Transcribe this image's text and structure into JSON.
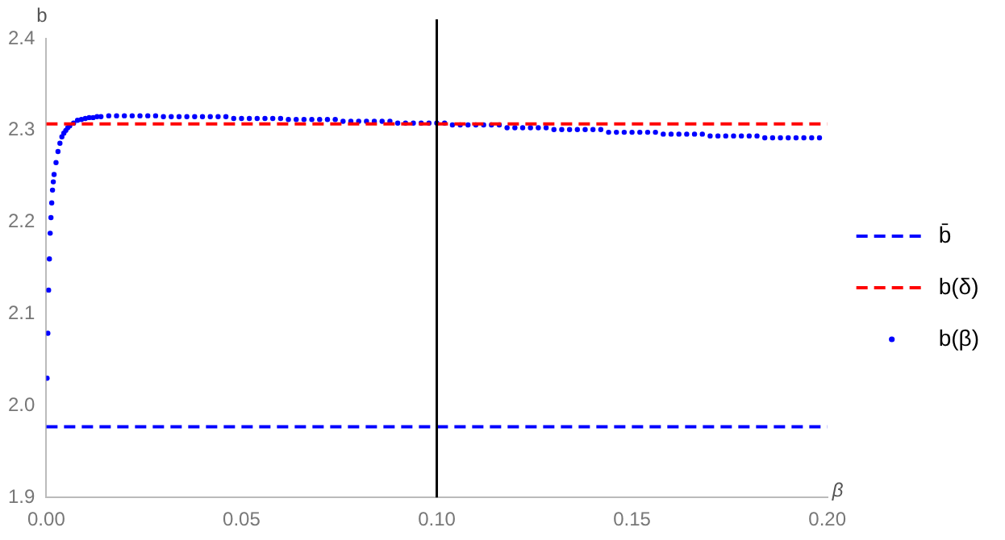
{
  "chart_data": {
    "type": "line",
    "xlabel": "β",
    "ylabel": "b",
    "xlim": [
      0,
      0.2
    ],
    "ylim": [
      1.9,
      2.4
    ],
    "xticks": [
      {
        "value": 0,
        "label": "0.00"
      },
      0.05,
      {
        "value": 0.1,
        "label": "0.10"
      },
      0.15,
      {
        "value": 0.2,
        "label": "0.20"
      }
    ],
    "yticks": [
      1.9,
      {
        "value": 2,
        "label": "2.0"
      },
      2.1,
      2.2,
      2.3,
      2.4
    ],
    "grid": false,
    "legend": "right",
    "ref_lines": [
      {
        "axis": "x",
        "value": 0.1,
        "color": "#000000"
      }
    ],
    "series": [
      {
        "name": "b̄",
        "line_style": "dashed",
        "marker": "none",
        "color": "#0000ff",
        "x": [
          0,
          0.2
        ],
        "values": [
          1.977,
          1.977
        ]
      },
      {
        "name": "b(δ)",
        "line_style": "dashed",
        "marker": "none",
        "color": "#ff0000",
        "x": [
          0,
          0.2
        ],
        "values": [
          2.307,
          2.307
        ]
      },
      {
        "name": "b(β)",
        "type": "scatter",
        "marker": "circle",
        "color": "#0000ff",
        "x": [
          0.0002,
          0.0004,
          0.0006,
          0.0008,
          0.001,
          0.0012,
          0.0014,
          0.0016,
          0.0018,
          0.002,
          0.0025,
          0.003,
          0.0035,
          0.004,
          0.0045,
          0.005,
          0.0055,
          0.006,
          0.007,
          0.008,
          0.009,
          0.01,
          0.011,
          0.012,
          0.013,
          0.014,
          0.016,
          0.018,
          0.02,
          0.022,
          0.024,
          0.026,
          0.028,
          0.03,
          0.032,
          0.034,
          0.036,
          0.038,
          0.04,
          0.042,
          0.044,
          0.046,
          0.048,
          0.05,
          0.052,
          0.054,
          0.056,
          0.058,
          0.06,
          0.062,
          0.064,
          0.066,
          0.068,
          0.07,
          0.072,
          0.074,
          0.076,
          0.078,
          0.08,
          0.082,
          0.084,
          0.086,
          0.088,
          0.09,
          0.092,
          0.094,
          0.096,
          0.098,
          0.1,
          0.102,
          0.104,
          0.106,
          0.108,
          0.11,
          0.112,
          0.114,
          0.116,
          0.118,
          0.12,
          0.122,
          0.124,
          0.126,
          0.128,
          0.13,
          0.132,
          0.134,
          0.136,
          0.138,
          0.14,
          0.142,
          0.144,
          0.146,
          0.148,
          0.15,
          0.152,
          0.154,
          0.156,
          0.158,
          0.16,
          0.162,
          0.164,
          0.166,
          0.168,
          0.17,
          0.172,
          0.174,
          0.176,
          0.178,
          0.18,
          0.182,
          0.184,
          0.186,
          0.188,
          0.19,
          0.192,
          0.194,
          0.196,
          0.198
        ],
        "values": [
          2.03,
          2.079,
          2.126,
          2.16,
          2.188,
          2.205,
          2.221,
          2.235,
          2.244,
          2.252,
          2.265,
          2.277,
          2.286,
          2.293,
          2.297,
          2.3,
          2.303,
          2.305,
          2.308,
          2.311,
          2.312,
          2.313,
          2.314,
          2.314,
          2.315,
          2.315,
          2.316,
          2.316,
          2.316,
          2.316,
          2.316,
          2.316,
          2.316,
          2.315,
          2.315,
          2.315,
          2.315,
          2.315,
          2.315,
          2.315,
          2.315,
          2.315,
          2.313,
          2.313,
          2.313,
          2.313,
          2.313,
          2.313,
          2.313,
          2.312,
          2.312,
          2.312,
          2.312,
          2.312,
          2.312,
          2.312,
          2.31,
          2.31,
          2.31,
          2.31,
          2.31,
          2.31,
          2.31,
          2.308,
          2.308,
          2.308,
          2.308,
          2.308,
          2.308,
          2.308,
          2.306,
          2.306,
          2.306,
          2.306,
          2.306,
          2.306,
          2.306,
          2.303,
          2.303,
          2.303,
          2.303,
          2.303,
          2.303,
          2.301,
          2.301,
          2.301,
          2.301,
          2.301,
          2.301,
          2.301,
          2.298,
          2.298,
          2.298,
          2.298,
          2.298,
          2.298,
          2.298,
          2.296,
          2.296,
          2.296,
          2.296,
          2.296,
          2.296,
          2.294,
          2.294,
          2.294,
          2.294,
          2.294,
          2.294,
          2.294,
          2.292,
          2.292,
          2.292,
          2.292,
          2.292,
          2.292,
          2.292,
          2.292
        ]
      }
    ]
  }
}
